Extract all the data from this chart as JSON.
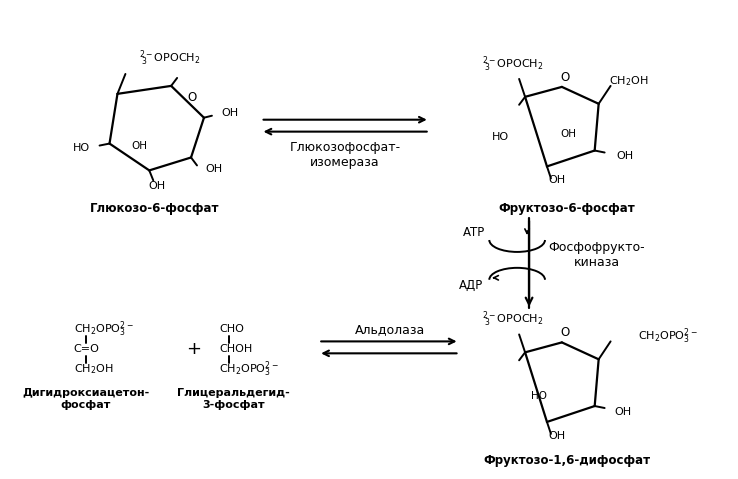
{
  "figsize": [
    7.38,
    4.79
  ],
  "dpi": 100,
  "bg_color": "#ffffff",
  "glucose6p_label": "Глюкозо-6-фосфат",
  "fructose6p_label": "Фруктозо-6-фосфат",
  "fructose16p_label": "Фруктозо-1,6-дифосфат",
  "dhap_label": "Дигидроксиацетон-\nфосфат",
  "gap_label": "Глицеральдегид-\n3-фосфат",
  "enzyme1_label": "Глюкозофосфат-\nизомераза",
  "enzyme2_label": "Фосфофрукто-\nкиназа",
  "enzyme3_label": "Альдолаза",
  "atp_label": "АТР",
  "adp_label": "АДР",
  "fs": 8.0,
  "fl": 8.5,
  "fe": 9.0
}
